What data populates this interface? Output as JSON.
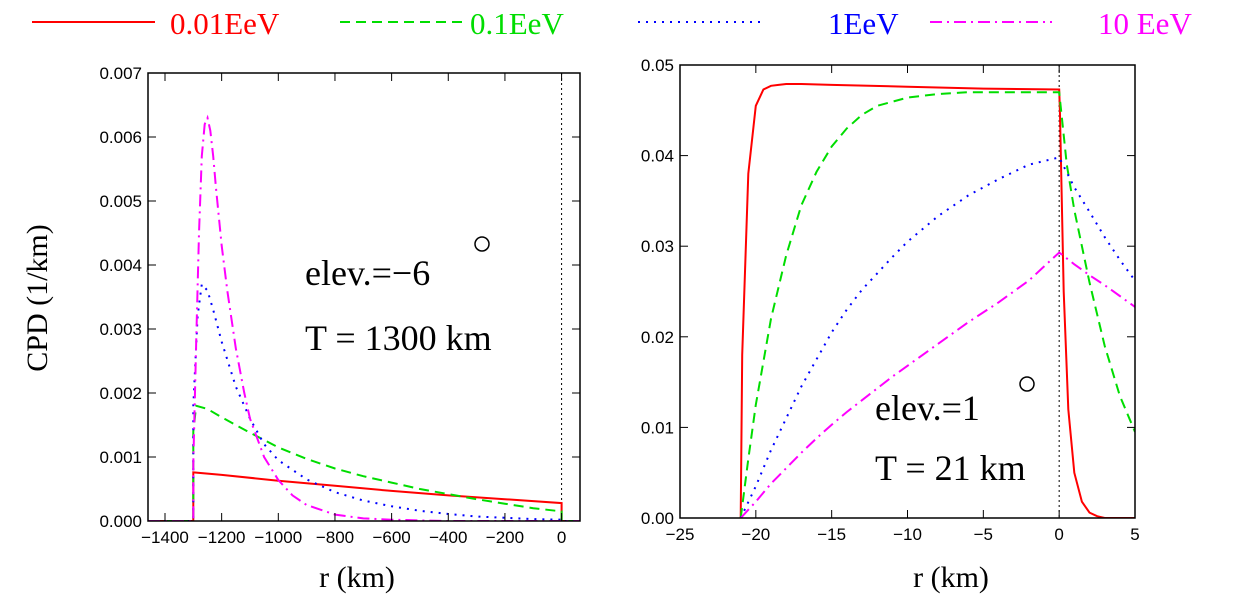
{
  "legend": [
    {
      "label": "0.01EeV",
      "color": "#ff0000",
      "dash": "solid"
    },
    {
      "label": "0.1EeV",
      "color": "#00dd00",
      "dash": "dashed"
    },
    {
      "label": "1EeV",
      "color": "#0000ff",
      "dash": "dotted"
    },
    {
      "label": "10 EeV",
      "color": "#ff00ff",
      "dash": "dashdot"
    }
  ],
  "ylabel": "CPD (1/km)",
  "chart_data": [
    {
      "type": "line",
      "xlabel": "r (km)",
      "ylabel": "CPD (1/km)",
      "xlim": [
        -1460,
        65
      ],
      "ylim": [
        0,
        0.007
      ],
      "xticks": [
        -1400,
        -1200,
        -1000,
        -800,
        -600,
        -400,
        -200,
        0
      ],
      "xtick_labels": [
        "−1400",
        "−1200",
        "−1000",
        "−800",
        "−600",
        "−400",
        "−200",
        "0"
      ],
      "yticks": [
        0,
        0.001,
        0.002,
        0.003,
        0.004,
        0.005,
        0.006,
        0.007
      ],
      "ytick_labels": [
        "0.000",
        "0.001",
        "0.002",
        "0.003",
        "0.004",
        "0.005",
        "0.006",
        "0.007"
      ],
      "vline": 0,
      "annotations": [
        "elev.=−6",
        "T = 1300 km"
      ],
      "series": [
        {
          "name": "0.01EeV",
          "x": [
            -1460,
            -1300,
            -1300,
            -1200,
            -1000,
            -800,
            -600,
            -400,
            -200,
            0,
            0,
            65
          ],
          "y": [
            0,
            0,
            0.00076,
            0.00072,
            0.00063,
            0.00055,
            0.00047,
            0.0004,
            0.00034,
            0.00028,
            0,
            0
          ]
        },
        {
          "name": "0.1EeV",
          "x": [
            -1460,
            -1300,
            -1300,
            -1290,
            -1250,
            -1200,
            -1100,
            -1000,
            -900,
            -800,
            -700,
            -600,
            -500,
            -400,
            -300,
            -200,
            -100,
            0,
            0,
            65
          ],
          "y": [
            0,
            0,
            0.0014,
            0.0018,
            0.00175,
            0.00162,
            0.00138,
            0.00115,
            0.00097,
            0.00082,
            0.0007,
            0.0006,
            0.0005,
            0.00042,
            0.00034,
            0.00027,
            0.0002,
            0.00015,
            0,
            0
          ]
        },
        {
          "name": "1EeV",
          "x": [
            -1460,
            -1300,
            -1300,
            -1285,
            -1270,
            -1250,
            -1230,
            -1200,
            -1150,
            -1100,
            -1050,
            -1000,
            -900,
            -800,
            -700,
            -600,
            -500,
            -400,
            -300,
            -200,
            -100,
            0,
            0,
            65
          ],
          "y": [
            0,
            0,
            0.0018,
            0.0032,
            0.0037,
            0.0036,
            0.0033,
            0.0028,
            0.0021,
            0.0016,
            0.0012,
            0.00095,
            0.00065,
            0.00045,
            0.00032,
            0.00023,
            0.00016,
            0.00011,
            7e-05,
            5e-05,
            3e-05,
            2e-05,
            0,
            0
          ]
        },
        {
          "name": "10 EeV",
          "x": [
            -1460,
            -1300,
            -1300,
            -1290,
            -1280,
            -1270,
            -1260,
            -1250,
            -1240,
            -1230,
            -1220,
            -1200,
            -1180,
            -1150,
            -1120,
            -1100,
            -1050,
            -1000,
            -950,
            -900,
            -800,
            -700,
            -600,
            -500,
            -400,
            -300,
            -200,
            0,
            65
          ],
          "y": [
            0,
            0,
            0.0009,
            0.0028,
            0.0045,
            0.0057,
            0.0062,
            0.0063,
            0.0061,
            0.0057,
            0.0052,
            0.0043,
            0.0036,
            0.0027,
            0.002,
            0.0016,
            0.001,
            0.00064,
            0.0004,
            0.00025,
            0.0001,
            4e-05,
            2e-05,
            1e-05,
            0,
            0,
            0,
            0,
            0
          ]
        }
      ]
    },
    {
      "type": "line",
      "xlabel": "r (km)",
      "xlim": [
        -25,
        5
      ],
      "ylim": [
        0,
        0.05
      ],
      "xticks": [
        -25,
        -20,
        -15,
        -10,
        -5,
        0,
        5
      ],
      "xtick_labels": [
        "−25",
        "−20",
        "−15",
        "−10",
        "−5",
        "0",
        "5"
      ],
      "yticks": [
        0,
        0.01,
        0.02,
        0.03,
        0.04,
        0.05
      ],
      "ytick_labels": [
        "0.00",
        "0.01",
        "0.02",
        "0.03",
        "0.04",
        "0.05"
      ],
      "vline": 0,
      "annotations": [
        "elev.=1",
        "T = 21 km"
      ],
      "series": [
        {
          "name": "0.01EeV",
          "x": [
            -21,
            -20.9,
            -20.5,
            -20,
            -19.5,
            -19,
            -18.5,
            -18,
            -17,
            -15,
            -10,
            -5,
            0,
            0.05,
            0.3,
            0.6,
            1,
            1.5,
            2,
            2.5,
            3,
            5
          ],
          "y": [
            0,
            0.018,
            0.038,
            0.0455,
            0.0473,
            0.0477,
            0.0478,
            0.0479,
            0.0479,
            0.0478,
            0.0476,
            0.0474,
            0.0473,
            0.045,
            0.025,
            0.012,
            0.005,
            0.0018,
            0.0006,
            0.0002,
            0,
            0
          ]
        },
        {
          "name": "0.1EeV",
          "x": [
            -21,
            -20.5,
            -20,
            -19,
            -18,
            -17,
            -16,
            -15,
            -14,
            -13,
            -12,
            -10,
            -8,
            -6,
            -4,
            -2,
            0,
            0.5,
            1,
            2,
            3,
            4,
            5
          ],
          "y": [
            0,
            0.0065,
            0.0125,
            0.022,
            0.029,
            0.0345,
            0.0382,
            0.041,
            0.043,
            0.0445,
            0.0455,
            0.0464,
            0.0468,
            0.047,
            0.047,
            0.047,
            0.047,
            0.039,
            0.034,
            0.026,
            0.019,
            0.0135,
            0.0095
          ]
        },
        {
          "name": "1EeV",
          "x": [
            -21,
            -20,
            -19,
            -18,
            -17,
            -16,
            -15,
            -14,
            -13,
            -12,
            -11,
            -10,
            -8,
            -6,
            -4,
            -2,
            0,
            1,
            2,
            3,
            4,
            5
          ],
          "y": [
            0,
            0.0035,
            0.0075,
            0.011,
            0.0145,
            0.0175,
            0.0205,
            0.023,
            0.0252,
            0.027,
            0.0288,
            0.0305,
            0.0333,
            0.0356,
            0.0374,
            0.039,
            0.0398,
            0.0365,
            0.0338,
            0.031,
            0.0285,
            0.0262
          ]
        },
        {
          "name": "10 EeV",
          "x": [
            -21,
            -20,
            -19,
            -18,
            -17,
            -16,
            -15,
            -14,
            -13,
            -12,
            -11,
            -10,
            -8,
            -6,
            -4,
            -2,
            0,
            1,
            2,
            3,
            4,
            5
          ],
          "y": [
            0,
            0.0018,
            0.0038,
            0.0055,
            0.0072,
            0.0088,
            0.0103,
            0.0117,
            0.013,
            0.0143,
            0.0156,
            0.0168,
            0.0192,
            0.0216,
            0.0238,
            0.0262,
            0.0293,
            0.028,
            0.0268,
            0.0257,
            0.0245,
            0.0233
          ]
        }
      ]
    }
  ]
}
